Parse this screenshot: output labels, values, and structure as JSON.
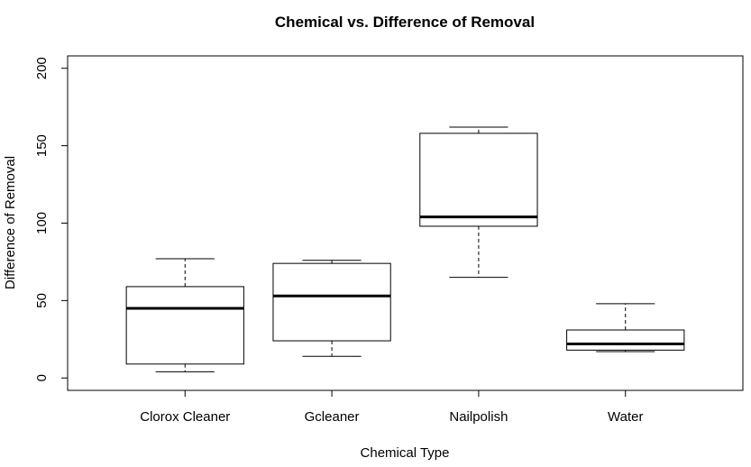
{
  "chart_data": {
    "type": "boxplot",
    "title": "Chemical vs. Difference of Removal",
    "xlabel": "Chemical Type",
    "ylabel": "Difference of Removal",
    "ylim": [
      -8,
      208
    ],
    "yticks": [
      0,
      50,
      100,
      150,
      200
    ],
    "grid": false,
    "categories": [
      "Clorox Cleaner",
      "Gcleaner",
      "Nailpolish",
      "Water"
    ],
    "series": [
      {
        "category": "Clorox Cleaner",
        "min": 4,
        "q1": 9,
        "median": 45,
        "q3": 59,
        "max": 77
      },
      {
        "category": "Gcleaner",
        "min": 14,
        "q1": 24,
        "median": 53,
        "q3": 74,
        "max": 76
      },
      {
        "category": "Nailpolish",
        "min": 65,
        "q1": 98,
        "median": 104,
        "q3": 158,
        "max": 162
      },
      {
        "category": "Water",
        "min": 17,
        "q1": 18,
        "median": 22,
        "q3": 31,
        "max": 48
      }
    ]
  }
}
